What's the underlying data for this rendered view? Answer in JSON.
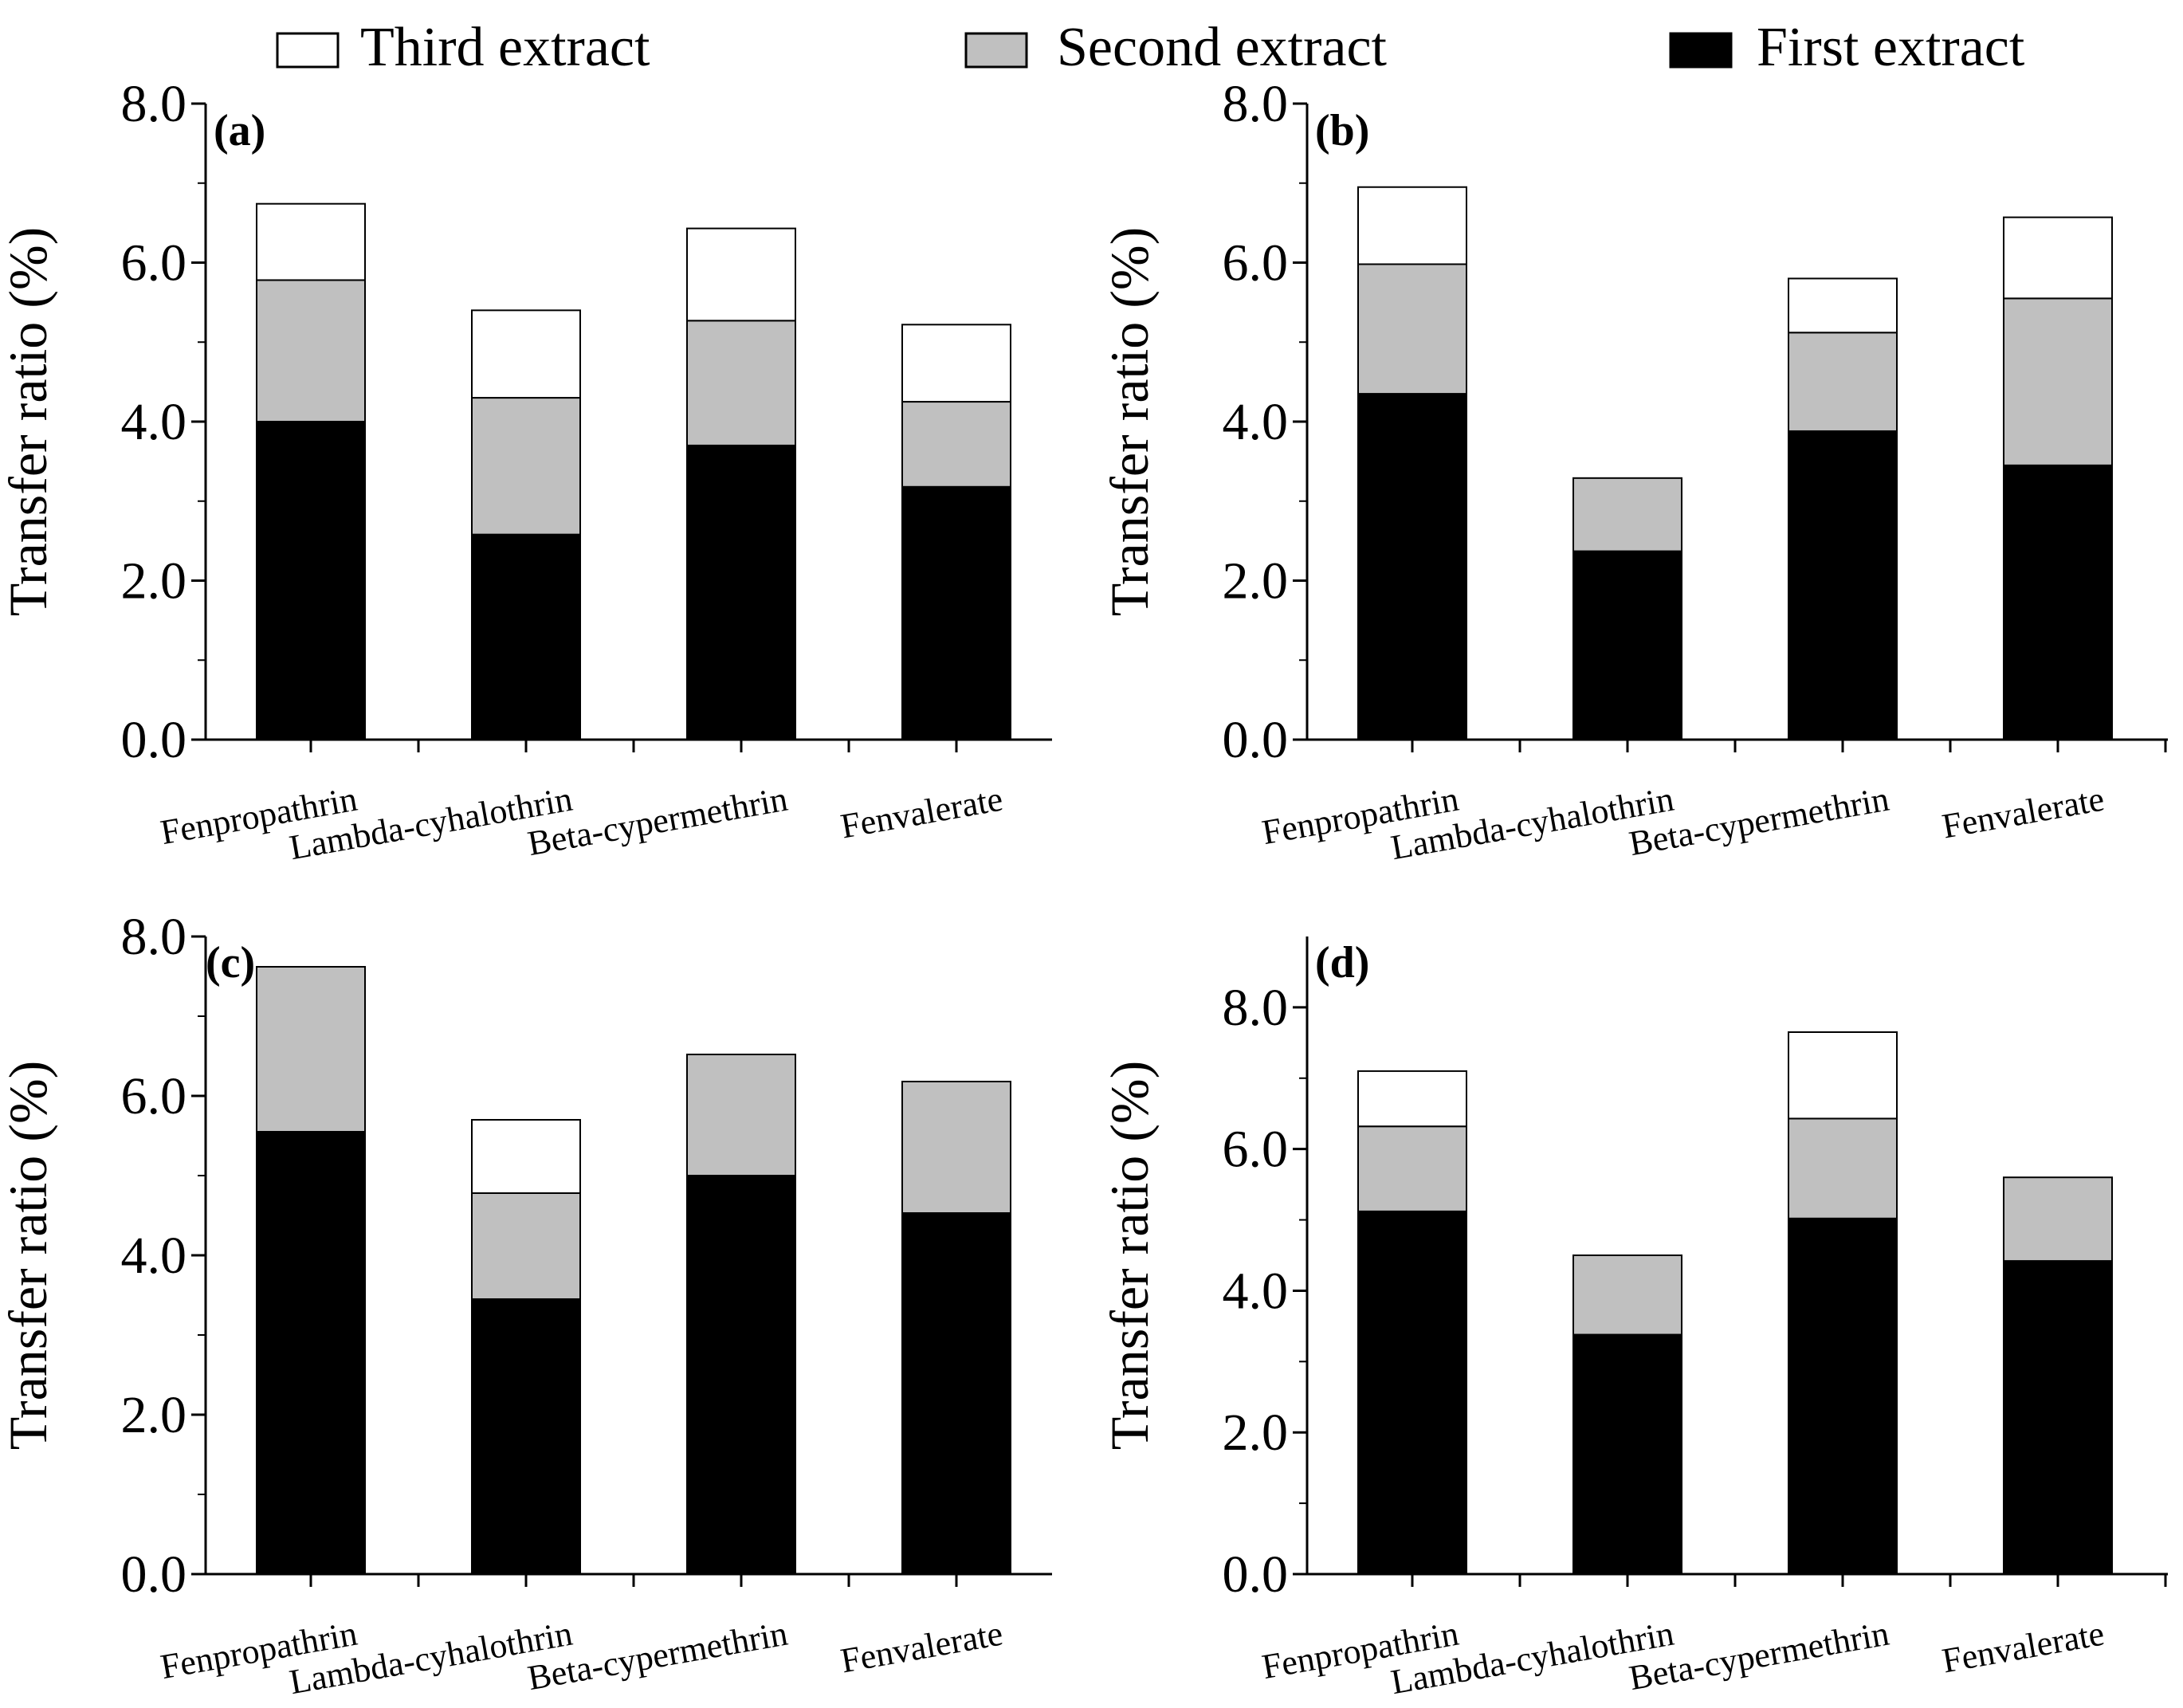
{
  "legend": {
    "items": [
      {
        "label": "Third extract",
        "color": "#ffffff"
      },
      {
        "label": "Second extract",
        "color": "#c0c0c0"
      },
      {
        "label": "First extract",
        "color": "#000000"
      }
    ]
  },
  "colors": {
    "first": "#000000",
    "second": "#c0c0c0",
    "third": "#ffffff",
    "axis": "#000000"
  },
  "chart_data": [
    {
      "panel_label": "(a)",
      "type": "bar",
      "stacked": true,
      "categories": [
        "Fenpropathrin",
        "Lambda-cyhalothrin",
        "Beta-cypermethrin",
        "Fenvalerate"
      ],
      "series": [
        {
          "name": "First extract",
          "values": [
            4.0,
            2.58,
            3.7,
            3.18
          ]
        },
        {
          "name": "Second extract",
          "values": [
            1.78,
            1.72,
            1.57,
            1.07
          ]
        },
        {
          "name": "Third extract",
          "values": [
            0.96,
            1.1,
            1.16,
            0.97
          ]
        }
      ],
      "ylabel": "Transfer ratio (%)",
      "ylim": [
        0,
        8
      ],
      "yticks": [
        0,
        2,
        4,
        6,
        8
      ],
      "ytick_labels": [
        "0.0",
        "2.0",
        "4.0",
        "6.0",
        "8.0"
      ]
    },
    {
      "panel_label": "(b)",
      "type": "bar",
      "stacked": true,
      "categories": [
        "Fenpropathrin",
        "Lambda-cyhalothrin",
        "Beta-cypermethrin",
        "Fenvalerate"
      ],
      "series": [
        {
          "name": "First extract",
          "values": [
            4.35,
            2.37,
            3.88,
            3.45
          ]
        },
        {
          "name": "Second extract",
          "values": [
            1.63,
            0.92,
            1.24,
            2.1
          ]
        },
        {
          "name": "Third extract",
          "values": [
            0.97,
            0,
            0.68,
            1.02
          ]
        }
      ],
      "ylabel": "Transfer ratio (%)",
      "ylim": [
        0,
        8
      ],
      "yticks": [
        0,
        2,
        4,
        6,
        8
      ],
      "ytick_labels": [
        "0.0",
        "2.0",
        "4.0",
        "6.0",
        "8.0"
      ]
    },
    {
      "panel_label": "(c)",
      "type": "bar",
      "stacked": true,
      "categories": [
        "Fenpropathrin",
        "Lambda-cyhalothrin",
        "Beta-cypermethrin",
        "Fenvalerate"
      ],
      "series": [
        {
          "name": "First extract",
          "values": [
            5.55,
            3.45,
            5.0,
            4.53
          ]
        },
        {
          "name": "Second extract",
          "values": [
            2.07,
            1.33,
            1.52,
            1.65
          ]
        },
        {
          "name": "Third extract",
          "values": [
            0,
            0.92,
            0,
            0
          ]
        }
      ],
      "ylabel": "Transfer ratio (%)",
      "ylim": [
        0,
        8
      ],
      "yticks": [
        0,
        2,
        4,
        6,
        8
      ],
      "ytick_labels": [
        "0.0",
        "2.0",
        "4.0",
        "6.0",
        "8.0"
      ]
    },
    {
      "panel_label": "(d)",
      "type": "bar",
      "stacked": true,
      "categories": [
        "Fenpropathrin",
        "Lambda-cyhalothrin",
        "Beta-cypermethrin",
        "Fenvalerate"
      ],
      "series": [
        {
          "name": "First extract",
          "values": [
            5.12,
            3.38,
            5.02,
            4.42
          ]
        },
        {
          "name": "Second extract",
          "values": [
            1.2,
            1.12,
            1.41,
            1.18
          ]
        },
        {
          "name": "Third extract",
          "values": [
            0.78,
            0,
            1.22,
            0
          ]
        }
      ],
      "ylabel": "Transfer ratio (%)",
      "ylim": [
        0,
        9
      ],
      "yticks": [
        0,
        2,
        4,
        6,
        8
      ],
      "ytick_labels": [
        "0.0",
        "2.0",
        "4.0",
        "6.0",
        "8.0"
      ]
    }
  ]
}
